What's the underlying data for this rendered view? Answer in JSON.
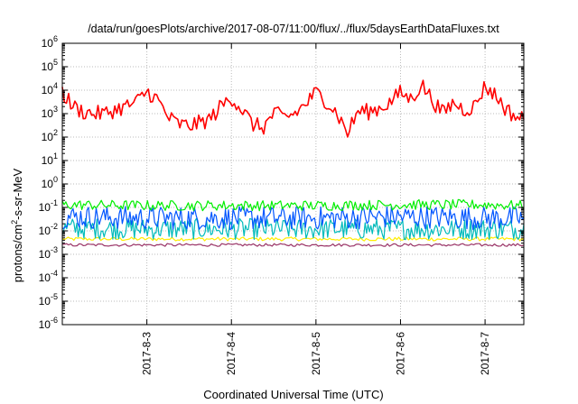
{
  "chart_data": {
    "type": "line",
    "title": "/data/run/goesPlots/archive/2017-08-07/11:00/flux/../flux/5daysEarthDataFluxes.txt",
    "xlabel": "Coordinated Universal Time (UTC)",
    "ylabel": "protons/cm²-s-sr-MeV",
    "ylabel_parts": {
      "before": "protons/cm",
      "sup": "2",
      "after": "-s-sr-MeV"
    },
    "y_scale": "log",
    "ylim": [
      1e-06,
      1000000.0
    ],
    "xlim": [
      "2017-08-02",
      "2017-08-07T11:00"
    ],
    "grid": true,
    "legend": "none",
    "x_ticks": [
      "2017-8-3",
      "2017-8-4",
      "2017-8-5",
      "2017-8-6",
      "2017-8-7"
    ],
    "y_ticks": [
      {
        "base": "10",
        "exp": "6"
      },
      {
        "base": "10",
        "exp": "5"
      },
      {
        "base": "10",
        "exp": "4"
      },
      {
        "base": "10",
        "exp": "3"
      },
      {
        "base": "10",
        "exp": "2"
      },
      {
        "base": "10",
        "exp": "1"
      },
      {
        "base": "10",
        "exp": "0"
      },
      {
        "base": "10",
        "exp": "-1"
      },
      {
        "base": "10",
        "exp": "-2"
      },
      {
        "base": "10",
        "exp": "-3"
      },
      {
        "base": "10",
        "exp": "-4"
      },
      {
        "base": "10",
        "exp": "-5"
      },
      {
        "base": "10",
        "exp": "-6"
      }
    ],
    "series": [
      {
        "color": "#ff0000",
        "x": [
          "2017-08-02T00:00",
          "2017-08-02T03:00",
          "2017-08-02T06:00",
          "2017-08-02T09:00",
          "2017-08-02T12:00",
          "2017-08-02T15:00",
          "2017-08-02T18:00",
          "2017-08-02T21:00",
          "2017-08-03T00:00",
          "2017-08-03T03:00",
          "2017-08-03T06:00",
          "2017-08-03T09:00",
          "2017-08-03T12:00",
          "2017-08-03T15:00",
          "2017-08-03T18:00",
          "2017-08-03T21:00",
          "2017-08-04T00:00",
          "2017-08-04T03:00",
          "2017-08-04T06:00",
          "2017-08-04T09:00",
          "2017-08-04T12:00",
          "2017-08-04T15:00",
          "2017-08-04T18:00",
          "2017-08-04T21:00",
          "2017-08-05T00:00",
          "2017-08-05T03:00",
          "2017-08-05T06:00",
          "2017-08-05T09:00",
          "2017-08-05T12:00",
          "2017-08-05T15:00",
          "2017-08-05T18:00",
          "2017-08-05T21:00",
          "2017-08-06T00:00",
          "2017-08-06T03:00",
          "2017-08-06T06:00",
          "2017-08-06T09:00",
          "2017-08-06T12:00",
          "2017-08-06T15:00",
          "2017-08-06T18:00",
          "2017-08-06T21:00",
          "2017-08-07T00:00",
          "2017-08-07T03:00",
          "2017-08-07T06:00",
          "2017-08-07T09:00",
          "2017-08-07T11:00"
        ],
        "values": [
          8000,
          2000,
          1200,
          1000,
          1000,
          1500,
          2000,
          3000,
          9000,
          4000,
          700,
          350,
          300,
          400,
          600,
          2000,
          5000,
          1500,
          350,
          250,
          1000,
          700,
          1000,
          2500,
          8000,
          3500,
          1000,
          150,
          1300,
          1200,
          1700,
          3000,
          8000,
          4000,
          18000,
          4000,
          1000,
          3000,
          1500,
          2000,
          15000,
          6000,
          1500,
          700,
          600
        ]
      },
      {
        "color": "#00ee00",
        "x": [
          "2017-08-02T00:00",
          "2017-08-03T00:00",
          "2017-08-04T00:00",
          "2017-08-05T00:00",
          "2017-08-06T00:00",
          "2017-08-07T00:00",
          "2017-08-07T11:00"
        ],
        "values": [
          0.13,
          0.12,
          0.12,
          0.12,
          0.13,
          0.13,
          0.12
        ]
      },
      {
        "color": "#0055ff",
        "x": [
          "2017-08-02T00:00",
          "2017-08-03T00:00",
          "2017-08-04T00:00",
          "2017-08-05T00:00",
          "2017-08-06T00:00",
          "2017-08-07T00:00",
          "2017-08-07T11:00"
        ],
        "values": [
          0.04,
          0.035,
          0.035,
          0.035,
          0.04,
          0.035,
          0.035
        ]
      },
      {
        "color": "#00bbbb",
        "x": [
          "2017-08-02T00:00",
          "2017-08-03T00:00",
          "2017-08-04T00:00",
          "2017-08-05T00:00",
          "2017-08-06T00:00",
          "2017-08-07T00:00",
          "2017-08-07T11:00"
        ],
        "values": [
          0.013,
          0.012,
          0.012,
          0.012,
          0.012,
          0.012,
          0.012
        ]
      },
      {
        "color": "#ffee00",
        "x": [
          "2017-08-02T00:00",
          "2017-08-03T00:00",
          "2017-08-04T00:00",
          "2017-08-05T00:00",
          "2017-08-06T00:00",
          "2017-08-07T00:00",
          "2017-08-07T11:00"
        ],
        "values": [
          0.0045,
          0.0045,
          0.0045,
          0.0045,
          0.0045,
          0.0045,
          0.0045
        ]
      },
      {
        "color": "#993366",
        "x": [
          "2017-08-02T00:00",
          "2017-08-03T00:00",
          "2017-08-04T00:00",
          "2017-08-05T00:00",
          "2017-08-06T00:00",
          "2017-08-07T00:00",
          "2017-08-07T11:00"
        ],
        "values": [
          0.0025,
          0.0025,
          0.0025,
          0.0025,
          0.0025,
          0.0025,
          0.0025
        ]
      }
    ]
  }
}
